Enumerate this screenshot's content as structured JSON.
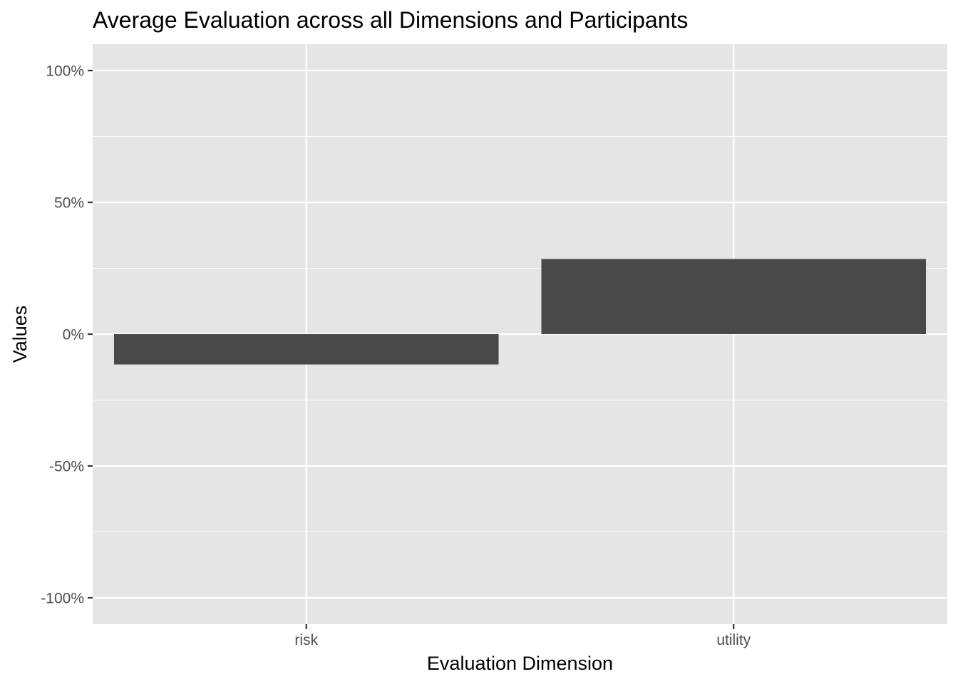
{
  "chart_data": {
    "type": "bar",
    "title": "Average Evaluation across all Dimensions and Participants",
    "xlabel": "Evaluation Dimension",
    "ylabel": "Values",
    "categories": [
      "risk",
      "utility"
    ],
    "values": [
      -0.115,
      0.285
    ],
    "ylim": [
      -1.1,
      1.1
    ],
    "y_ticks": [
      1.0,
      0.5,
      0.0,
      -0.5,
      -1.0
    ],
    "y_tick_labels": [
      "100%",
      "50%",
      "0%",
      "-50%",
      "-100%"
    ],
    "grid": true,
    "legend": "none",
    "colors": {
      "panel_background": "#e5e5e5",
      "grid": "#ffffff",
      "bar_fill": "#494949",
      "tick_text": "#4d4d4d",
      "axis_ticks": "#333333"
    }
  }
}
